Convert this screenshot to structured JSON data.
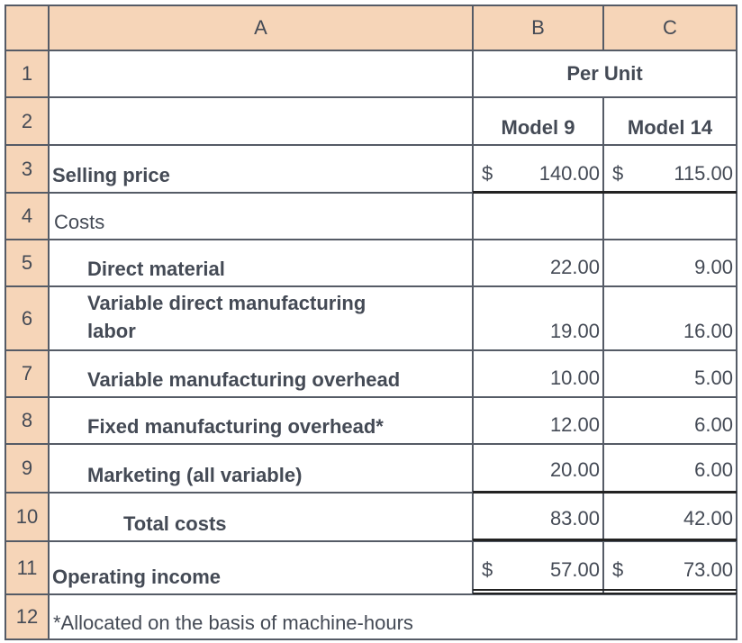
{
  "columns": [
    "A",
    "B",
    "C"
  ],
  "rows": [
    "1",
    "2",
    "3",
    "4",
    "5",
    "6",
    "7",
    "8",
    "9",
    "10",
    "11",
    "12"
  ],
  "header": {
    "per_unit": "Per Unit",
    "model9": "Model 9",
    "model14": "Model 14"
  },
  "lines": [
    {
      "label": "Selling price",
      "b_prefix": "$",
      "b": "140.00",
      "c_prefix": "$",
      "c": "115.00"
    },
    {
      "label": "Costs"
    },
    {
      "label": "Direct material",
      "b": "22.00",
      "c": "9.00"
    },
    {
      "label_l1": "Variable direct manufacturing",
      "label_l2": "labor",
      "b": "19.00",
      "c": "16.00"
    },
    {
      "label": "Variable manufacturing overhead",
      "b": "10.00",
      "c": "5.00"
    },
    {
      "label": "Fixed manufacturing overhead*",
      "b": "12.00",
      "c": "6.00"
    },
    {
      "label": "Marketing (all variable)",
      "b": "20.00",
      "c": "6.00"
    },
    {
      "label": "Total costs",
      "b": "83.00",
      "c": "42.00"
    },
    {
      "label": "Operating income",
      "b_prefix": "$",
      "b": "57.00",
      "c_prefix": "$",
      "c": "73.00"
    }
  ],
  "footnote": "*Allocated on the basis of machine-hours",
  "colors": {
    "header_bg": "#f6d5b8",
    "text": "#444a55",
    "grid": "#555b66"
  }
}
